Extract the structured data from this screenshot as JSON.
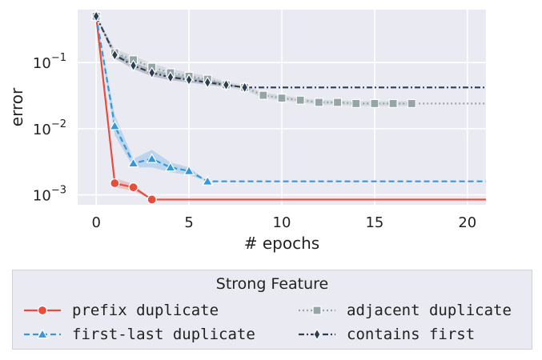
{
  "chart_data": {
    "type": "line",
    "xlabel": "# epochs",
    "ylabel": "error",
    "xlim": [
      -1,
      21
    ],
    "ylim_log10": [
      -3.15,
      -0.2
    ],
    "yscale": "log",
    "x_ticks": [
      0,
      5,
      10,
      15,
      20
    ],
    "y_ticks": [
      {
        "label_base": "10",
        "label_exp": "−1",
        "value": 0.1
      },
      {
        "label_base": "10",
        "label_exp": "−2",
        "value": 0.01
      },
      {
        "label_base": "10",
        "label_exp": "−3",
        "value": 0.001
      }
    ],
    "grid": true,
    "legend": {
      "title": "Strong Feature",
      "placement": "below"
    },
    "series": [
      {
        "name": "prefix duplicate",
        "color": "#e74c3c",
        "linestyle": "solid",
        "marker": "circle",
        "x": [
          0,
          1,
          2,
          3
        ],
        "y": [
          0.5,
          0.0015,
          0.0013,
          0.00085
        ],
        "band_lo": [
          0.5,
          0.0013,
          0.00115,
          0.00085
        ],
        "band_hi": [
          0.5,
          0.0018,
          0.00145,
          0.00085
        ],
        "extend_to": 21
      },
      {
        "name": "first-last duplicate",
        "color": "#3498db",
        "linestyle": "dashed",
        "marker": "triangle",
        "x": [
          0,
          1,
          2,
          3,
          4,
          5,
          6
        ],
        "y": [
          0.5,
          0.011,
          0.003,
          0.0035,
          0.0026,
          0.0023,
          0.0016
        ],
        "band_lo": [
          0.5,
          0.008,
          0.0026,
          0.0026,
          0.0022,
          0.002,
          0.0016
        ],
        "band_hi": [
          0.5,
          0.016,
          0.0035,
          0.0048,
          0.0031,
          0.0026,
          0.0016
        ],
        "extend_to": 21
      },
      {
        "name": "adjacent duplicate",
        "color": "#95a5a6",
        "linestyle": "dotted",
        "marker": "square",
        "x": [
          0,
          1,
          2,
          3,
          4,
          5,
          6,
          7,
          8,
          9,
          10,
          11,
          12,
          13,
          14,
          15,
          16,
          17
        ],
        "y": [
          0.5,
          0.14,
          0.11,
          0.085,
          0.07,
          0.062,
          0.056,
          0.046,
          0.042,
          0.032,
          0.029,
          0.027,
          0.025,
          0.025,
          0.024,
          0.024,
          0.024,
          0.024
        ],
        "band_lo": [
          0.5,
          0.12,
          0.095,
          0.075,
          0.062,
          0.055,
          0.05,
          0.042,
          0.038,
          0.029,
          0.027,
          0.025,
          0.023,
          0.023,
          0.022,
          0.022,
          0.022,
          0.022
        ],
        "band_hi": [
          0.5,
          0.16,
          0.125,
          0.097,
          0.08,
          0.07,
          0.063,
          0.051,
          0.046,
          0.035,
          0.032,
          0.029,
          0.027,
          0.027,
          0.026,
          0.026,
          0.026,
          0.026
        ],
        "extend_to": 21
      },
      {
        "name": "contains first",
        "color": "#2c3e50",
        "linestyle": "dashdot",
        "marker": "diamond",
        "x": [
          0,
          1,
          2,
          3,
          4,
          5,
          6,
          7,
          8
        ],
        "y": [
          0.5,
          0.13,
          0.09,
          0.07,
          0.06,
          0.055,
          0.05,
          0.046,
          0.042
        ],
        "band_lo": [
          0.5,
          0.115,
          0.08,
          0.062,
          0.054,
          0.05,
          0.046,
          0.043,
          0.042
        ],
        "band_hi": [
          0.5,
          0.145,
          0.1,
          0.078,
          0.067,
          0.06,
          0.055,
          0.049,
          0.042
        ],
        "extend_to": 21
      }
    ]
  }
}
